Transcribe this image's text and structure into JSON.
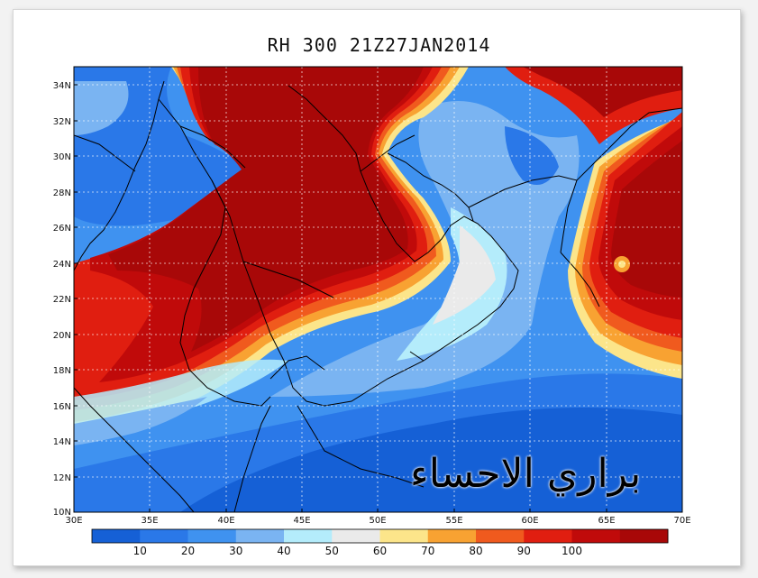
{
  "title": "RH 300 21Z27JAN2014",
  "watermark": "براري الاحساء",
  "axes": {
    "y_labels": [
      "34N",
      "32N",
      "30N",
      "28N",
      "26N",
      "24N",
      "22N",
      "20N",
      "18N",
      "16N",
      "14N",
      "12N",
      "10N"
    ],
    "x_labels": [
      "30E",
      "35E",
      "40E",
      "45E",
      "50E",
      "55E",
      "60E",
      "65E",
      "70E"
    ]
  },
  "colorbar": {
    "colors": [
      "#1560d6",
      "#2a78e8",
      "#3f92f0",
      "#7ab4f2",
      "#b4ecfb",
      "#eaeaea",
      "#fce58a",
      "#f8a232",
      "#f05a1e",
      "#e01e10",
      "#c00a0a",
      "#a80808"
    ],
    "labels": [
      "10",
      "20",
      "30",
      "40",
      "50",
      "60",
      "70",
      "80",
      "90",
      "100"
    ]
  },
  "chart_data": {
    "type": "heatmap",
    "title": "RH 300 21Z27JAN2014",
    "variable": "RH 300",
    "xlim": [
      30,
      70
    ],
    "ylim": [
      10,
      35
    ],
    "x_ticks": [
      30,
      35,
      40,
      45,
      50,
      55,
      60,
      65,
      70
    ],
    "y_ticks": [
      10,
      12,
      14,
      16,
      18,
      20,
      22,
      24,
      26,
      28,
      30,
      32,
      34
    ],
    "color_levels": [
      10,
      20,
      30,
      40,
      50,
      60,
      70,
      80,
      90,
      100
    ],
    "grid": true
  }
}
